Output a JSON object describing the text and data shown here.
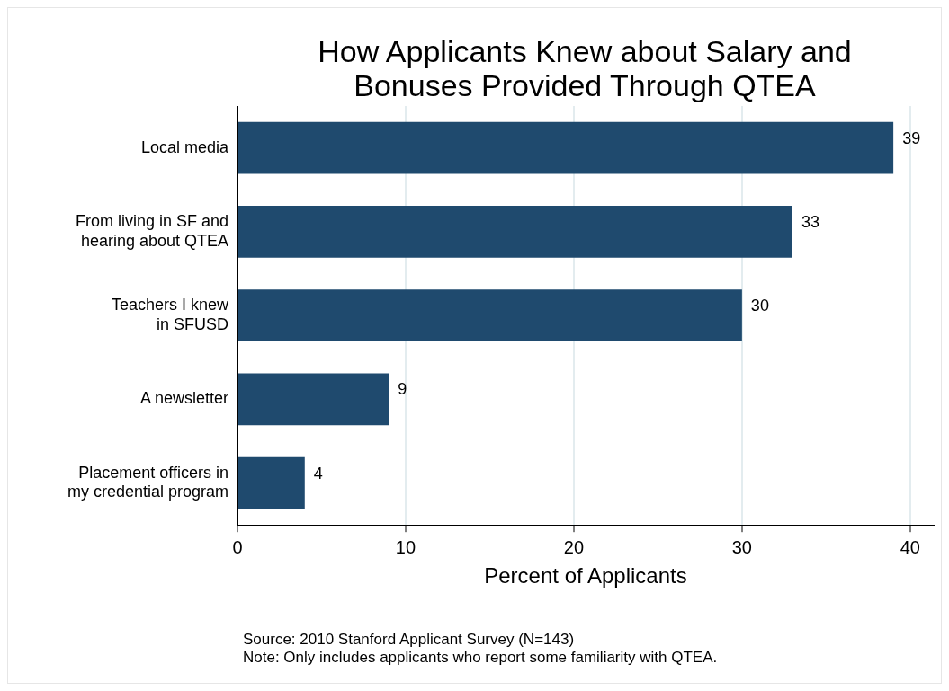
{
  "chart_data": {
    "type": "bar",
    "orientation": "horizontal",
    "title": "How Applicants Knew about Salary and Bonuses Provided Through QTEA",
    "xlabel": "Percent of Applicants",
    "categories": [
      "Local media",
      "From living in SF and\nhearing about QTEA",
      "Teachers I knew\nin SFUSD",
      "A newsletter",
      "Placement officers in\nmy credential program"
    ],
    "values": [
      39,
      33,
      30,
      9,
      4
    ],
    "color": "#1f4a6e",
    "data_labels": true,
    "xlim": [
      0,
      41.4
    ],
    "xticks": [
      0,
      10,
      20,
      30,
      40
    ],
    "grid": "x",
    "legend": false,
    "annotations": [
      "Source: 2010 Stanford Applicant Survey (N=143)",
      "Note: Only includes applicants who report some familiarity with QTEA."
    ]
  }
}
